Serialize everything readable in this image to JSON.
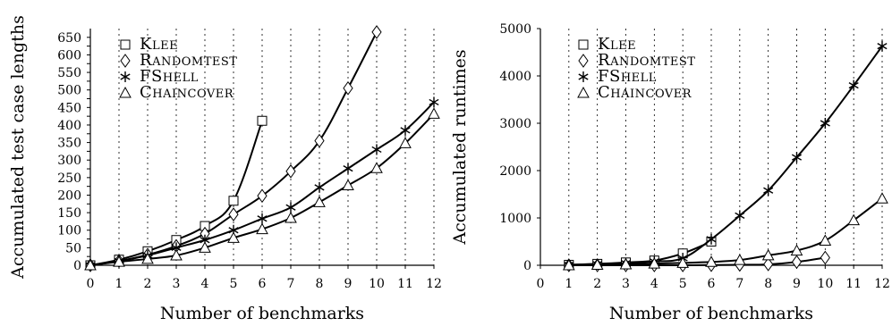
{
  "chart_data": [
    {
      "type": "line",
      "ylabel": "Accumulated test case lengths",
      "xlabel": "Number of benchmarks",
      "xlim": [
        0,
        12
      ],
      "ylim": [
        0,
        675
      ],
      "xticks": [
        "0",
        "1",
        "2",
        "3",
        "4",
        "5",
        "6",
        "7",
        "8",
        "9",
        "10",
        "11",
        "12"
      ],
      "yticks": [
        "0",
        "25",
        "50",
        "75",
        "100",
        "125",
        "150",
        "175",
        "200",
        "225",
        "250",
        "275",
        "300",
        "325",
        "350",
        "375",
        "400",
        "425",
        "450",
        "475",
        "500",
        "525",
        "550",
        "575",
        "600",
        "625",
        "650"
      ],
      "grid": true,
      "legend_position": "top-left",
      "series": [
        {
          "name": "Klee",
          "marker": "square",
          "x": [
            0,
            1,
            2,
            3,
            4,
            5,
            6
          ],
          "y": [
            0,
            16,
            40,
            72,
            112,
            184,
            412
          ]
        },
        {
          "name": "RandomTest",
          "marker": "diamond",
          "x": [
            0,
            1,
            2,
            3,
            4,
            5,
            6,
            7,
            8,
            9,
            10
          ],
          "y": [
            0,
            12,
            30,
            55,
            90,
            145,
            198,
            268,
            355,
            505,
            665
          ]
        },
        {
          "name": "FShell",
          "marker": "asterisk",
          "x": [
            0,
            1,
            2,
            3,
            4,
            5,
            6,
            7,
            8,
            9,
            10,
            11,
            12
          ],
          "y": [
            0,
            12,
            28,
            50,
            72,
            100,
            133,
            165,
            222,
            276,
            330,
            385,
            465
          ]
        },
        {
          "name": "ChainCover",
          "marker": "triangle",
          "x": [
            0,
            1,
            2,
            3,
            4,
            5,
            6,
            7,
            8,
            9,
            10,
            11,
            12
          ],
          "y": [
            0,
            10,
            18,
            28,
            50,
            78,
            103,
            135,
            180,
            228,
            277,
            348,
            432
          ]
        }
      ]
    },
    {
      "type": "line",
      "ylabel": "Accumulated runtimes",
      "xlabel": "Number of benchmarks",
      "xlim": [
        0,
        12
      ],
      "ylim": [
        0,
        5000
      ],
      "xticks": [
        "0",
        "1",
        "2",
        "3",
        "4",
        "5",
        "6",
        "7",
        "8",
        "9",
        "10",
        "11",
        "12"
      ],
      "yticks": [
        "0",
        "1000",
        "2000",
        "3000",
        "4000",
        "5000"
      ],
      "grid": true,
      "legend_position": "top-left",
      "series": [
        {
          "name": "Klee",
          "marker": "square",
          "x": [
            1,
            2,
            3,
            4,
            5,
            6
          ],
          "y": [
            10,
            30,
            60,
            100,
            250,
            500
          ]
        },
        {
          "name": "RandomTest",
          "marker": "diamond",
          "x": [
            1,
            2,
            3,
            4,
            5,
            6,
            7,
            8,
            9,
            10
          ],
          "y": [
            0,
            0,
            0,
            0,
            0,
            5,
            10,
            20,
            70,
            160
          ]
        },
        {
          "name": "FShell",
          "marker": "asterisk",
          "x": [
            1,
            2,
            3,
            4,
            5,
            6,
            7,
            8,
            9,
            10,
            11,
            12
          ],
          "y": [
            10,
            25,
            45,
            80,
            150,
            550,
            1050,
            1580,
            2280,
            3000,
            3800,
            4630
          ]
        },
        {
          "name": "ChainCover",
          "marker": "triangle",
          "x": [
            1,
            2,
            3,
            4,
            5,
            6,
            7,
            8,
            9,
            10,
            11,
            12
          ],
          "y": [
            0,
            10,
            20,
            35,
            50,
            70,
            110,
            210,
            310,
            520,
            950,
            1410
          ]
        }
      ]
    }
  ],
  "legend_display": [
    {
      "first": "K",
      "rest": "LEE"
    },
    {
      "first": "R",
      "rest": "ANDOMTEST"
    },
    {
      "first": "FS",
      "rest": "HELL"
    },
    {
      "first": "C",
      "rest": "HAINCOVER"
    }
  ]
}
